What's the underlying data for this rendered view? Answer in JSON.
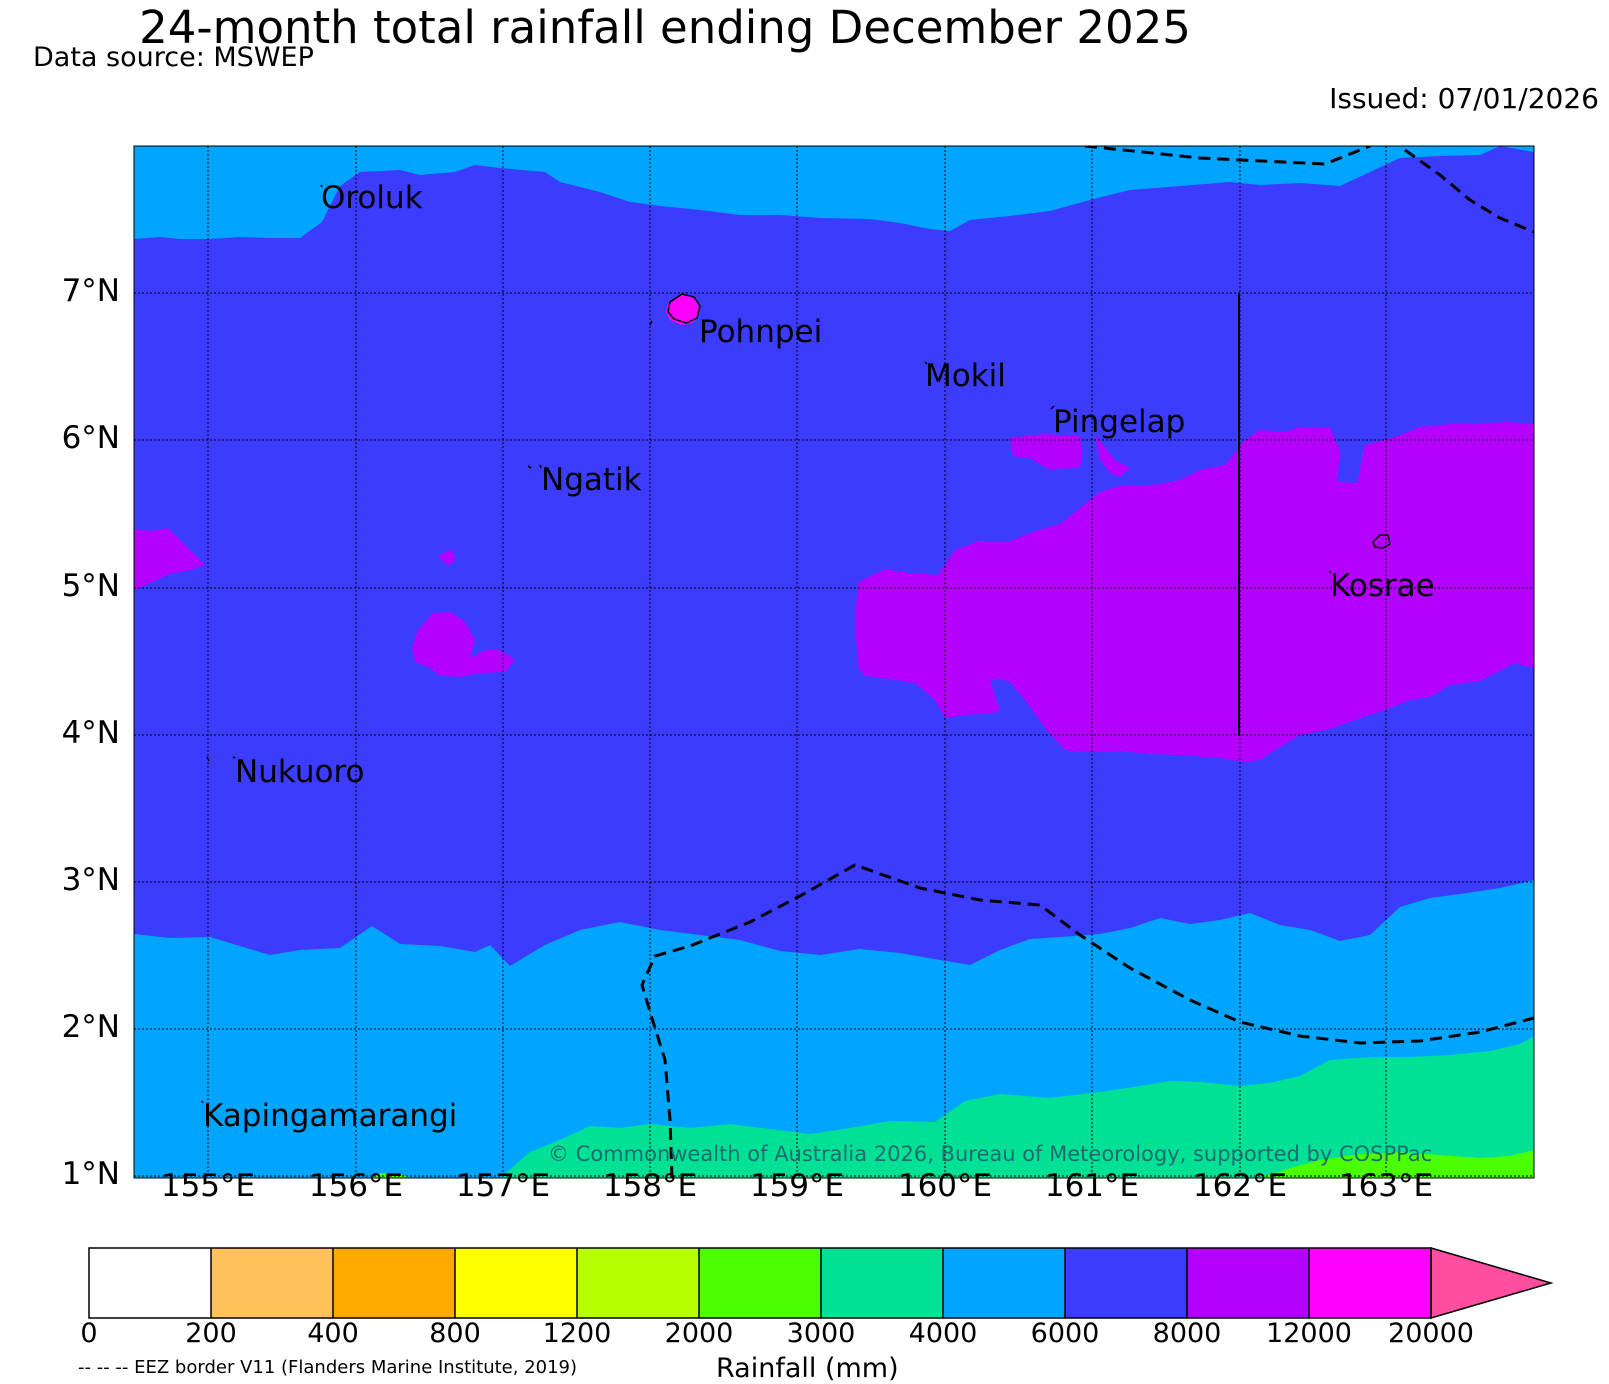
{
  "title": "24-month total rainfall ending December 2025",
  "source": "Data source: MSWEP",
  "issued": "Issued: 07/01/2026",
  "latitude_labels": [
    "7°N",
    "6°N",
    "5°N",
    "4°N",
    "3°N",
    "2°N",
    "1°N"
  ],
  "longitude_labels": [
    "155°E",
    "156°E",
    "157°E",
    "158°E",
    "159°E",
    "160°E",
    "161°E",
    "162°E",
    "163°E"
  ],
  "places": [
    "Oroluk",
    "Pohnpei",
    "Mokil",
    "Pingelap",
    "Ngatik",
    "Kosrae",
    "Nukuoro",
    "Kapingamarangi"
  ],
  "copyright": "© Commonwealth of Australia 2026, Bureau of Meteorology, supported by COSPPac",
  "colorbar": {
    "title": "Rainfall (mm)",
    "ticks": [
      "0",
      "200",
      "400",
      "800",
      "1200",
      "2000",
      "3000",
      "4000",
      "6000",
      "8000",
      "12000",
      "20000"
    ],
    "colors": [
      "#ffffff",
      "#ffc15a",
      "#ffaa00",
      "#ffff00",
      "#b4ff00",
      "#4cff00",
      "#00e196",
      "#00a5ff",
      "#3c3cff",
      "#b400ff",
      "#ff00ff",
      "#ff4ea0"
    ]
  },
  "eez_note": "-- -- -- EEZ border V11 (Flanders Marine Institute, 2019)",
  "colors": {
    "band_6000_8000": "#3c3cff",
    "band_4000_6000": "#00a5ff",
    "band_8000_12000": "#b400ff",
    "band_3000_4000": "#00e196",
    "band_2000_3000": "#4cff00",
    "band_12000_20000": "#ff00ff"
  }
}
